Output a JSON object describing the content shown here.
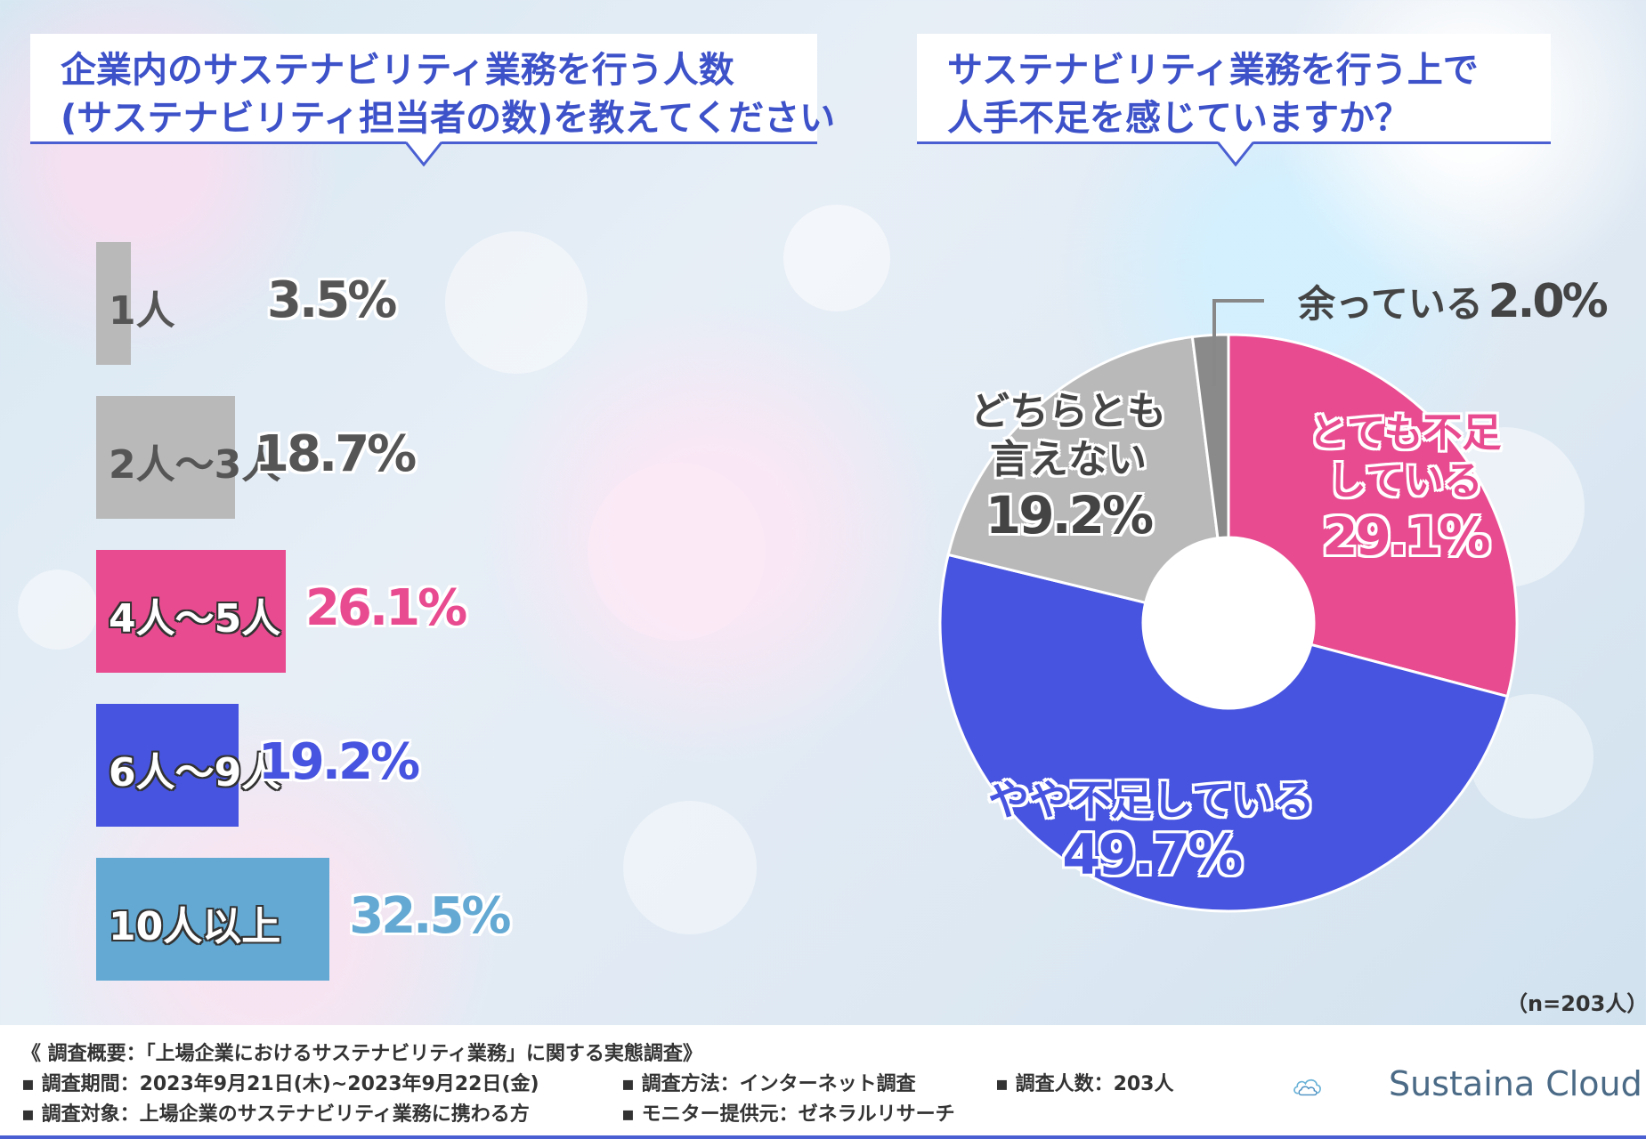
{
  "left_title": {
    "line1": "企業内のサステナビリティ業務を行う人数",
    "line2": "(サステナビリティ担当者の数)を教えてください"
  },
  "right_title": {
    "line1": "サステナビリティ業務を行う上で",
    "line2": "人手不足を感じていますか？"
  },
  "chart_data": [
    {
      "type": "bar",
      "orientation": "horizontal",
      "title": "企業内のサステナビリティ業務を行う人数(サステナビリティ担当者の数)を教えてください",
      "categories": [
        "1人",
        "2人〜3人",
        "4人〜5人",
        "6人〜9人",
        "10人以上"
      ],
      "values": [
        3.5,
        18.7,
        26.1,
        19.2,
        32.5
      ],
      "value_labels": [
        "3.5%",
        "18.7%",
        "26.1%",
        "19.2%",
        "32.5%"
      ],
      "colors": [
        "#b9b9b9",
        "#b9b9b9",
        "#e84b8f",
        "#4754df",
        "#63a9d3"
      ],
      "value_colors": [
        "#555555",
        "#555555",
        "#e84b8f",
        "#4754df",
        "#63a9d3"
      ],
      "xlim": [
        0,
        100
      ]
    },
    {
      "type": "pie",
      "donut": true,
      "title": "サステナビリティ業務を行う上で人手不足を感じていますか？",
      "categories": [
        "とても不足している",
        "やや不足している",
        "どちらとも言えない",
        "余っている"
      ],
      "values": [
        29.1,
        49.7,
        19.2,
        2.0
      ],
      "value_labels": [
        "29.1%",
        "49.7%",
        "19.2%",
        "2.0%"
      ],
      "label_lines": [
        [
          "とても不足",
          "している"
        ],
        [
          "やや不足している"
        ],
        [
          "どちらとも",
          "言えない"
        ],
        [
          "余っている"
        ]
      ],
      "colors": [
        "#e84b8f",
        "#4754df",
        "#b9b9b9",
        "#8a8a8a"
      ],
      "start_angle_deg": 0
    }
  ],
  "sample_size": "（n=203人）",
  "footer": {
    "summary": "《 調査概要：「上場企業におけるサステナビリティ業務」に関する実態調査》",
    "period": "▪ 調査期間：2023年9月21日(木)~2023年9月22日(金)",
    "method": "▪ 調査方法：インターネット調査",
    "count": "▪ 調査人数：203人",
    "target": "▪ 調査対象：上場企業のサステナビリティ業務に携わる方",
    "provider": "▪ モニター提供元：ゼネラルリサーチ",
    "logo_text": "Sustaina Cloud"
  }
}
